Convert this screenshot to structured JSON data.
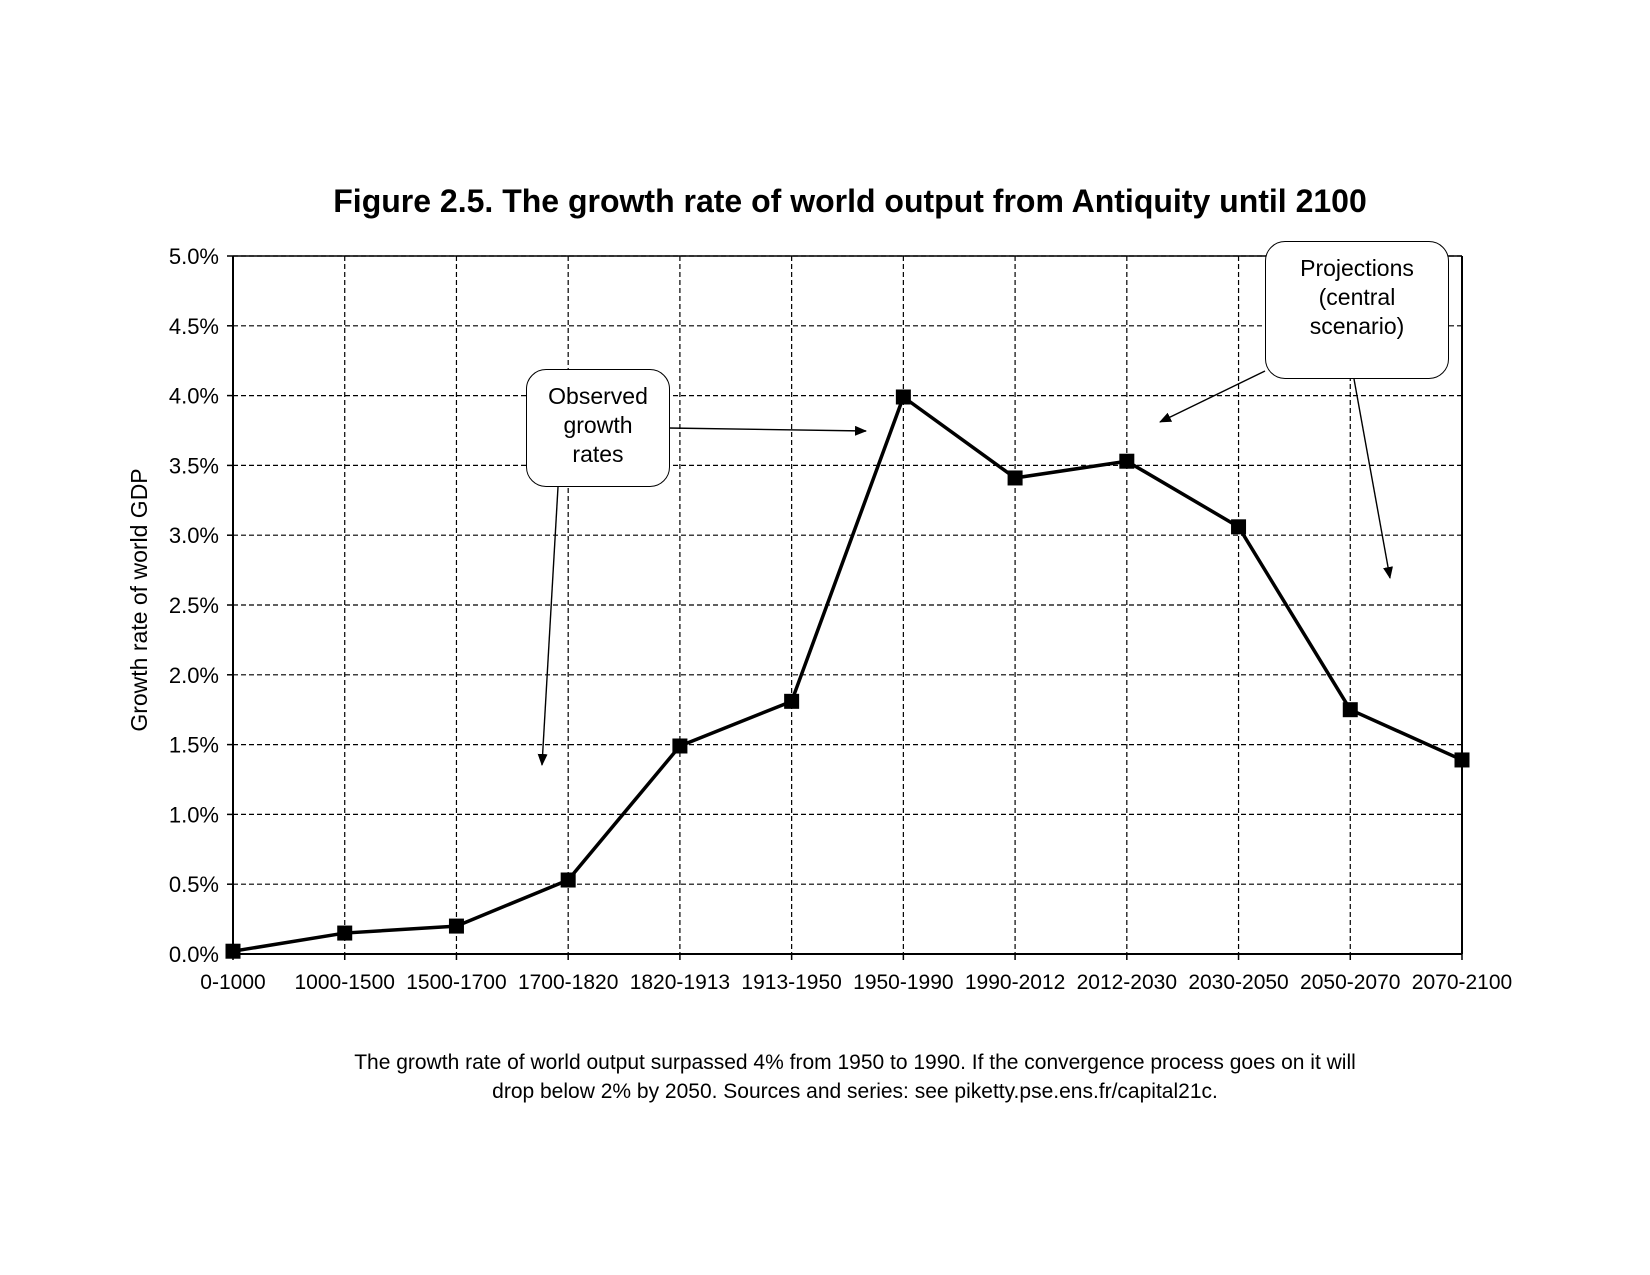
{
  "chart_data": {
    "type": "line",
    "title": "Figure 2.5. The growth rate of world output from Antiquity until 2100",
    "xlabel": "",
    "ylabel": "Growth rate of world GDP",
    "ylim": [
      0,
      5
    ],
    "yticks": [
      "0.0%",
      "0.5%",
      "1.0%",
      "1.5%",
      "2.0%",
      "2.5%",
      "3.0%",
      "3.5%",
      "4.0%",
      "4.5%",
      "5.0%"
    ],
    "grid": true,
    "legend": "none",
    "categories": [
      "0-1000",
      "1000-1500",
      "1500-1700",
      "1700-1820",
      "1820-1913",
      "1913-1950",
      "1950-1990",
      "1990-2012",
      "2012-2030",
      "2030-2050",
      "2050-2070",
      "2070-2100"
    ],
    "series": [
      {
        "name": "Growth rate of world GDP",
        "values": [
          0.02,
          0.15,
          0.2,
          0.53,
          1.49,
          1.81,
          3.99,
          3.41,
          3.53,
          3.06,
          1.75,
          1.39
        ]
      }
    ],
    "annotations": [
      {
        "id": "observed",
        "lines": [
          "Observed",
          "growth",
          "rates"
        ]
      },
      {
        "id": "projections",
        "lines": [
          "Projections",
          "(central",
          "scenario)"
        ]
      }
    ]
  },
  "caption": {
    "line1": "The growth rate of world output surpassed 4% from 1950 to 1990. If the convergence process goes on it will",
    "line2": "drop below 2% by 2050. Sources and series: see piketty.pse.ens.fr/capital21c."
  }
}
